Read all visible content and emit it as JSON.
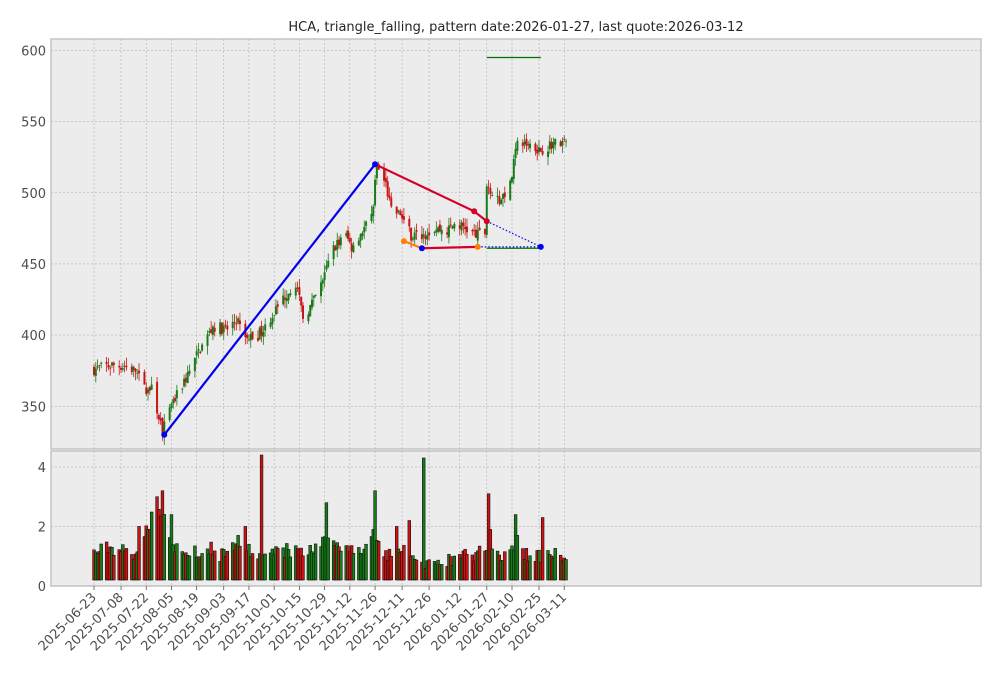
{
  "chart_data": {
    "type": "candlestick",
    "title": "HCA, triangle_falling, pattern date:2026-01-27, last quote:2026-03-12",
    "price_axis": {
      "ylim": [
        320,
        608
      ],
      "ticks": [
        350,
        400,
        450,
        500,
        550,
        600
      ]
    },
    "volume_axis": {
      "ylim": [
        0,
        4.4
      ],
      "ticks": [
        0,
        2,
        4
      ]
    },
    "x_axis": {
      "start_date": "2025-06-23",
      "tick_labels": [
        "2025-06-23",
        "2025-07-08",
        "2025-07-22",
        "2025-08-05",
        "2025-08-19",
        "2025-09-03",
        "2025-09-17",
        "2025-10-01",
        "2025-10-15",
        "2025-10-29",
        "2025-11-12",
        "2025-11-26",
        "2025-12-11",
        "2025-12-26",
        "2026-01-12",
        "2026-01-27",
        "2026-02-10",
        "2026-02-25",
        "2026-03-11"
      ]
    },
    "grid": true,
    "colors": {
      "up": "#1a7a1a",
      "down": "#c81414",
      "background": "#ececec",
      "grid": "#b0b0b0"
    },
    "price_anchors": [
      [
        "2025-06-23",
        376
      ],
      [
        "2025-07-03",
        379
      ],
      [
        "2025-07-10",
        378
      ],
      [
        "2025-07-16",
        375
      ],
      [
        "2025-07-21",
        362
      ],
      [
        "2025-07-25",
        362
      ],
      [
        "2025-07-31",
        333
      ],
      [
        "2025-08-07",
        355
      ],
      [
        "2025-08-14",
        372
      ],
      [
        "2025-08-20",
        388
      ],
      [
        "2025-08-28",
        406
      ],
      [
        "2025-09-05",
        404
      ],
      [
        "2025-09-10",
        411
      ],
      [
        "2025-09-15",
        397
      ],
      [
        "2025-09-22",
        400
      ],
      [
        "2025-09-29",
        412
      ],
      [
        "2025-10-06",
        426
      ],
      [
        "2025-10-13",
        437
      ],
      [
        "2025-10-17",
        412
      ],
      [
        "2025-10-22",
        422
      ],
      [
        "2025-10-27",
        435
      ],
      [
        "2025-11-03",
        462
      ],
      [
        "2025-11-10",
        470
      ],
      [
        "2025-11-13",
        462
      ],
      [
        "2025-11-17",
        470
      ],
      [
        "2025-11-24",
        482
      ],
      [
        "2025-11-27",
        518
      ],
      [
        "2025-12-02",
        506
      ],
      [
        "2025-12-05",
        487
      ],
      [
        "2025-12-10",
        485
      ],
      [
        "2025-12-16",
        470
      ],
      [
        "2025-12-22",
        470
      ],
      [
        "2025-12-29",
        475
      ],
      [
        "2026-01-05",
        473
      ],
      [
        "2026-01-09",
        478
      ],
      [
        "2026-01-14",
        476
      ],
      [
        "2026-01-21",
        470
      ],
      [
        "2026-01-26",
        472
      ],
      [
        "2026-01-27",
        506
      ],
      [
        "2026-02-03",
        495
      ],
      [
        "2026-02-09",
        505
      ],
      [
        "2026-02-13",
        535
      ],
      [
        "2026-02-20",
        534
      ],
      [
        "2026-02-26",
        530
      ],
      [
        "2026-03-05",
        535
      ],
      [
        "2026-03-12",
        535
      ]
    ],
    "volume_anchors": [
      [
        "2025-06-23",
        1.1
      ],
      [
        "2025-07-01",
        1.3
      ],
      [
        "2025-07-08",
        1.2
      ],
      [
        "2025-07-15",
        1.1
      ],
      [
        "2025-07-22",
        1.9
      ],
      [
        "2025-07-29",
        2.8
      ],
      [
        "2025-08-05",
        1.3
      ],
      [
        "2025-08-12",
        1.1
      ],
      [
        "2025-08-19",
        1.2
      ],
      [
        "2025-08-26",
        1.3
      ],
      [
        "2025-09-03",
        1.0
      ],
      [
        "2025-09-10",
        1.3
      ],
      [
        "2025-09-17",
        1.2
      ],
      [
        "2025-09-24",
        1.0
      ],
      [
        "2025-10-01",
        1.1
      ],
      [
        "2025-10-08",
        1.2
      ],
      [
        "2025-10-15",
        1.2
      ],
      [
        "2025-10-22",
        1.2
      ],
      [
        "2025-10-29",
        1.5
      ],
      [
        "2025-11-05",
        1.3
      ],
      [
        "2025-11-12",
        1.3
      ],
      [
        "2025-11-19",
        1.2
      ],
      [
        "2025-11-26",
        1.5
      ],
      [
        "2025-12-03",
        1.1
      ],
      [
        "2025-12-10",
        1.2
      ],
      [
        "2025-12-17",
        1.2
      ],
      [
        "2025-12-24",
        0.8
      ],
      [
        "2025-12-31",
        0.7
      ],
      [
        "2026-01-07",
        0.9
      ],
      [
        "2026-01-14",
        1.0
      ],
      [
        "2026-01-21",
        1.1
      ],
      [
        "2026-01-28",
        1.5
      ],
      [
        "2026-02-04",
        1.0
      ],
      [
        "2026-02-11",
        1.4
      ],
      [
        "2026-02-18",
        1.1
      ],
      [
        "2026-02-25",
        1.0
      ],
      [
        "2026-03-04",
        1.0
      ],
      [
        "2026-03-12",
        1.1
      ]
    ],
    "volume_spikes": [
      [
        "2025-07-18",
        2.0
      ],
      [
        "2025-07-28",
        3.0
      ],
      [
        "2025-07-31",
        3.2
      ],
      [
        "2025-08-05",
        2.4
      ],
      [
        "2025-09-11",
        1.7
      ],
      [
        "2025-09-15",
        2.0
      ],
      [
        "2025-09-24",
        4.4
      ],
      [
        "2025-10-30",
        2.8
      ],
      [
        "2025-11-25",
        1.9
      ],
      [
        "2025-11-26",
        3.2
      ],
      [
        "2025-12-08",
        2.0
      ],
      [
        "2025-12-15",
        2.2
      ],
      [
        "2025-12-23",
        4.3
      ],
      [
        "2026-01-28",
        3.1
      ],
      [
        "2026-01-29",
        1.9
      ],
      [
        "2026-02-12",
        2.4
      ],
      [
        "2026-02-13",
        1.7
      ],
      [
        "2026-02-27",
        2.3
      ]
    ],
    "overlays": [
      {
        "name": "trend-up",
        "color": "#0000ee",
        "style": "solid",
        "points": [
          [
            "2025-08-01",
            330
          ],
          [
            "2025-11-26",
            520
          ]
        ]
      },
      {
        "name": "upper-trendline",
        "color": "#d4002a",
        "style": "solid",
        "points": [
          [
            "2025-11-26",
            520
          ],
          [
            "2026-01-20",
            487
          ],
          [
            "2026-01-27",
            480
          ]
        ]
      },
      {
        "name": "lower-trendline",
        "color": "#ff7f00",
        "style": "solid",
        "points": [
          [
            "2025-12-12",
            466
          ],
          [
            "2025-12-22",
            461
          ]
        ]
      },
      {
        "name": "lower-trendline-flat",
        "color": "#d4002a",
        "style": "solid",
        "points": [
          [
            "2025-12-22",
            461
          ],
          [
            "2026-01-22",
            462
          ]
        ]
      },
      {
        "name": "projection-upper",
        "color": "#0000ee",
        "style": "dotted",
        "points": [
          [
            "2026-01-27",
            480
          ],
          [
            "2026-02-26",
            462
          ]
        ]
      },
      {
        "name": "projection-lower",
        "color": "#0000ee",
        "style": "dotted",
        "points": [
          [
            "2026-01-22",
            462
          ],
          [
            "2026-02-26",
            462
          ]
        ]
      },
      {
        "name": "target-high",
        "color": "#007000",
        "style": "solid",
        "points": [
          [
            "2026-01-27",
            595
          ],
          [
            "2026-02-26",
            595
          ]
        ]
      },
      {
        "name": "target-low",
        "color": "#007000",
        "style": "solid",
        "points": [
          [
            "2026-01-27",
            461
          ],
          [
            "2026-02-26",
            461
          ]
        ]
      }
    ],
    "markers": [
      {
        "color": "#0000ee",
        "points": [
          [
            "2025-08-01",
            330
          ],
          [
            "2025-11-26",
            520
          ],
          [
            "2025-12-22",
            461
          ],
          [
            "2026-02-26",
            462
          ]
        ]
      },
      {
        "color": "#d4002a",
        "points": [
          [
            "2026-01-20",
            487
          ],
          [
            "2026-01-27",
            480
          ]
        ]
      },
      {
        "color": "#ff7f00",
        "points": [
          [
            "2025-12-12",
            466
          ],
          [
            "2026-01-22",
            462
          ]
        ]
      }
    ]
  }
}
